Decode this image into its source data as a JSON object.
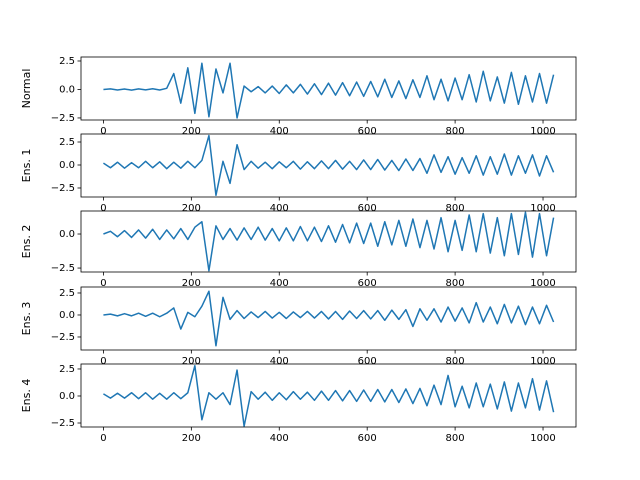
{
  "chart_data": [
    {
      "type": "line",
      "ylabel": "Normal",
      "color": "#1f77b4",
      "x": [
        0,
        16,
        32,
        48,
        64,
        80,
        96,
        112,
        128,
        144,
        160,
        176,
        192,
        208,
        224,
        240,
        256,
        272,
        288,
        304,
        320,
        336,
        352,
        368,
        384,
        400,
        416,
        432,
        448,
        464,
        480,
        496,
        512,
        528,
        544,
        560,
        576,
        592,
        608,
        624,
        640,
        656,
        672,
        688,
        704,
        720,
        736,
        752,
        768,
        784,
        800,
        816,
        832,
        848,
        864,
        880,
        896,
        912,
        928,
        944,
        960,
        976,
        992,
        1008,
        1024
      ],
      "values": [
        0,
        0.05,
        -0.05,
        0.04,
        -0.06,
        0.05,
        -0.04,
        0.06,
        -0.05,
        0.1,
        1.4,
        -1.2,
        1.9,
        -2.1,
        2.3,
        -2.4,
        1.8,
        -0.3,
        2.3,
        -2.5,
        0.3,
        -0.2,
        0.25,
        -0.3,
        0.3,
        -0.35,
        0.4,
        -0.3,
        0.45,
        -0.4,
        0.5,
        -0.45,
        0.55,
        -0.5,
        0.6,
        -0.55,
        0.65,
        -0.6,
        0.7,
        -0.65,
        0.9,
        -0.7,
        0.75,
        -0.8,
        0.85,
        -0.7,
        1.2,
        -0.9,
        0.9,
        -1.0,
        1.0,
        -0.9,
        1.3,
        -1.1,
        1.6,
        -1.0,
        1.1,
        -1.2,
        1.5,
        -1.3,
        1.2,
        -1.1,
        1.4,
        -1.2,
        1.3
      ],
      "xlim": [
        -51,
        1075
      ],
      "ylim": [
        -2.68,
        2.85
      ],
      "xticks": [
        0,
        200,
        400,
        600,
        800,
        1000
      ],
      "yticks": [
        {
          "value": -2.5,
          "label": "−2.5"
        },
        {
          "value": 0,
          "label": "0.0"
        },
        2.5
      ]
    },
    {
      "type": "line",
      "ylabel": "Ens. 1",
      "color": "#1f77b4",
      "x": [
        0,
        16,
        32,
        48,
        64,
        80,
        96,
        112,
        128,
        144,
        160,
        176,
        192,
        208,
        224,
        240,
        256,
        272,
        288,
        304,
        320,
        336,
        352,
        368,
        384,
        400,
        416,
        432,
        448,
        464,
        480,
        496,
        512,
        528,
        544,
        560,
        576,
        592,
        608,
        624,
        640,
        656,
        672,
        688,
        704,
        720,
        736,
        752,
        768,
        784,
        800,
        816,
        832,
        848,
        864,
        880,
        896,
        912,
        928,
        944,
        960,
        976,
        992,
        1008,
        1024
      ],
      "values": [
        0.2,
        -0.3,
        0.3,
        -0.35,
        0.25,
        -0.3,
        0.4,
        -0.3,
        0.35,
        -0.4,
        0.3,
        -0.35,
        0.4,
        -0.3,
        0.5,
        3.2,
        -3.3,
        0.4,
        -2.0,
        2.2,
        -0.5,
        0.4,
        -0.35,
        0.3,
        -0.4,
        0.35,
        -0.3,
        0.4,
        -0.45,
        0.35,
        -0.4,
        0.45,
        -0.4,
        0.5,
        -0.45,
        0.4,
        -0.5,
        0.55,
        -0.5,
        0.6,
        -0.55,
        0.5,
        -0.6,
        0.65,
        -0.6,
        0.7,
        -0.9,
        1.1,
        -0.8,
        0.9,
        -1.0,
        0.8,
        -0.9,
        1.0,
        -1.1,
        0.9,
        -1.0,
        1.2,
        -1.1,
        1.0,
        -0.9,
        1.1,
        -1.2,
        1.0,
        -0.8
      ],
      "xlim": [
        -51,
        1075
      ],
      "ylim": [
        -3.48,
        3.37
      ],
      "xticks": [
        0,
        200,
        400,
        600,
        800,
        1000
      ],
      "yticks": [
        {
          "value": -2.5,
          "label": "−2.5"
        },
        {
          "value": 0,
          "label": "0.0"
        },
        2.5
      ]
    },
    {
      "type": "line",
      "ylabel": "Ens. 2",
      "color": "#1f77b4",
      "x": [
        0,
        16,
        32,
        48,
        64,
        80,
        96,
        112,
        128,
        144,
        160,
        176,
        192,
        208,
        224,
        240,
        256,
        272,
        288,
        304,
        320,
        336,
        352,
        368,
        384,
        400,
        416,
        432,
        448,
        464,
        480,
        496,
        512,
        528,
        544,
        560,
        576,
        592,
        608,
        624,
        640,
        656,
        672,
        688,
        704,
        720,
        736,
        752,
        768,
        784,
        800,
        816,
        832,
        848,
        864,
        880,
        896,
        912,
        928,
        944,
        960,
        976,
        992,
        1008,
        1024
      ],
      "values": [
        0,
        0.2,
        -0.2,
        0.25,
        -0.25,
        0.3,
        -0.3,
        0.35,
        -0.4,
        0.3,
        -0.35,
        0.4,
        -0.4,
        0.5,
        0.9,
        -2.7,
        0.6,
        -0.4,
        0.4,
        -0.45,
        0.45,
        -0.4,
        0.5,
        -0.45,
        0.4,
        -0.5,
        0.45,
        -0.5,
        0.55,
        -0.5,
        0.5,
        -0.55,
        0.6,
        -0.6,
        0.7,
        -0.65,
        0.8,
        -0.7,
        0.8,
        -0.9,
        0.9,
        -0.8,
        1.0,
        -0.9,
        1.1,
        -1.0,
        1.0,
        -1.1,
        1.2,
        -1.3,
        1.0,
        -1.2,
        1.4,
        -1.3,
        1.5,
        -1.4,
        1.2,
        -1.6,
        1.5,
        -1.5,
        1.6,
        -1.7,
        1.5,
        -1.6,
        1.2
      ],
      "xlim": [
        -51,
        1075
      ],
      "ylim": [
        -2.79,
        1.69
      ],
      "xticks": [
        0,
        200,
        400,
        600,
        800,
        1000
      ],
      "yticks": [
        {
          "value": -2.5,
          "label": "−2.5"
        },
        {
          "value": 0,
          "label": "0.0"
        }
      ]
    },
    {
      "type": "line",
      "ylabel": "Ens. 3",
      "color": "#1f77b4",
      "x": [
        0,
        16,
        32,
        48,
        64,
        80,
        96,
        112,
        128,
        144,
        160,
        176,
        192,
        208,
        224,
        240,
        256,
        272,
        288,
        304,
        320,
        336,
        352,
        368,
        384,
        400,
        416,
        432,
        448,
        464,
        480,
        496,
        512,
        528,
        544,
        560,
        576,
        592,
        608,
        624,
        640,
        656,
        672,
        688,
        704,
        720,
        736,
        752,
        768,
        784,
        800,
        816,
        832,
        848,
        864,
        880,
        896,
        912,
        928,
        944,
        960,
        976,
        992,
        1008,
        1024
      ],
      "values": [
        0,
        0.1,
        -0.1,
        0.15,
        -0.1,
        0.2,
        -0.15,
        0.2,
        -0.2,
        0.2,
        0.8,
        -1.6,
        0.3,
        -0.2,
        1.0,
        2.7,
        -3.5,
        2.0,
        -0.5,
        0.5,
        -0.4,
        0.35,
        -0.3,
        0.4,
        -0.35,
        0.3,
        -0.4,
        0.35,
        -0.3,
        0.4,
        -0.35,
        0.4,
        -0.45,
        0.4,
        -0.5,
        0.45,
        -0.4,
        0.5,
        -0.45,
        0.5,
        -0.6,
        0.55,
        -0.5,
        0.6,
        -1.3,
        0.7,
        -0.6,
        0.7,
        -0.8,
        0.9,
        -0.7,
        0.8,
        -0.9,
        1.4,
        -0.8,
        0.9,
        -1.0,
        1.2,
        -0.9,
        1.0,
        -1.1,
        0.9,
        -1.0,
        1.1,
        -0.8
      ],
      "xlim": [
        -51,
        1075
      ],
      "ylim": [
        -3.98,
        3.18
      ],
      "xticks": [
        0,
        200,
        400,
        600,
        800,
        1000
      ],
      "yticks": [
        {
          "value": -2.5,
          "label": "−2.5"
        },
        {
          "value": 0,
          "label": "0.0"
        },
        2.5
      ]
    },
    {
      "type": "line",
      "ylabel": "Ens. 4",
      "color": "#1f77b4",
      "x": [
        0,
        16,
        32,
        48,
        64,
        80,
        96,
        112,
        128,
        144,
        160,
        176,
        192,
        208,
        224,
        240,
        256,
        272,
        288,
        304,
        320,
        336,
        352,
        368,
        384,
        400,
        416,
        432,
        448,
        464,
        480,
        496,
        512,
        528,
        544,
        560,
        576,
        592,
        608,
        624,
        640,
        656,
        672,
        688,
        704,
        720,
        736,
        752,
        768,
        784,
        800,
        816,
        832,
        848,
        864,
        880,
        896,
        912,
        928,
        944,
        960,
        976,
        992,
        1008,
        1024
      ],
      "values": [
        0.2,
        -0.2,
        0.25,
        -0.2,
        0.3,
        -0.25,
        0.3,
        -0.3,
        0.25,
        -0.3,
        0.3,
        -0.25,
        0.3,
        2.8,
        -2.2,
        0.3,
        -0.3,
        0.3,
        -0.8,
        2.4,
        -2.8,
        0.4,
        -0.3,
        0.35,
        -0.4,
        0.3,
        -0.35,
        0.4,
        -0.3,
        0.35,
        -0.4,
        0.45,
        -0.4,
        0.5,
        -0.45,
        0.5,
        -0.5,
        0.55,
        -0.5,
        0.6,
        -0.55,
        0.6,
        -0.6,
        0.65,
        -0.7,
        0.7,
        -0.9,
        1.0,
        -0.8,
        1.9,
        -1.0,
        0.9,
        -1.1,
        1.2,
        -1.0,
        1.1,
        -1.2,
        1.3,
        -1.4,
        1.2,
        -1.1,
        1.6,
        -1.3,
        1.4,
        -1.5
      ],
      "xlim": [
        -51,
        1075
      ],
      "ylim": [
        -2.87,
        2.96
      ],
      "xticks": [
        0,
        200,
        400,
        600,
        800,
        1000
      ],
      "yticks": [
        {
          "value": -2.5,
          "label": "−2.5"
        },
        {
          "value": 0,
          "label": "0.0"
        },
        2.5
      ]
    }
  ]
}
